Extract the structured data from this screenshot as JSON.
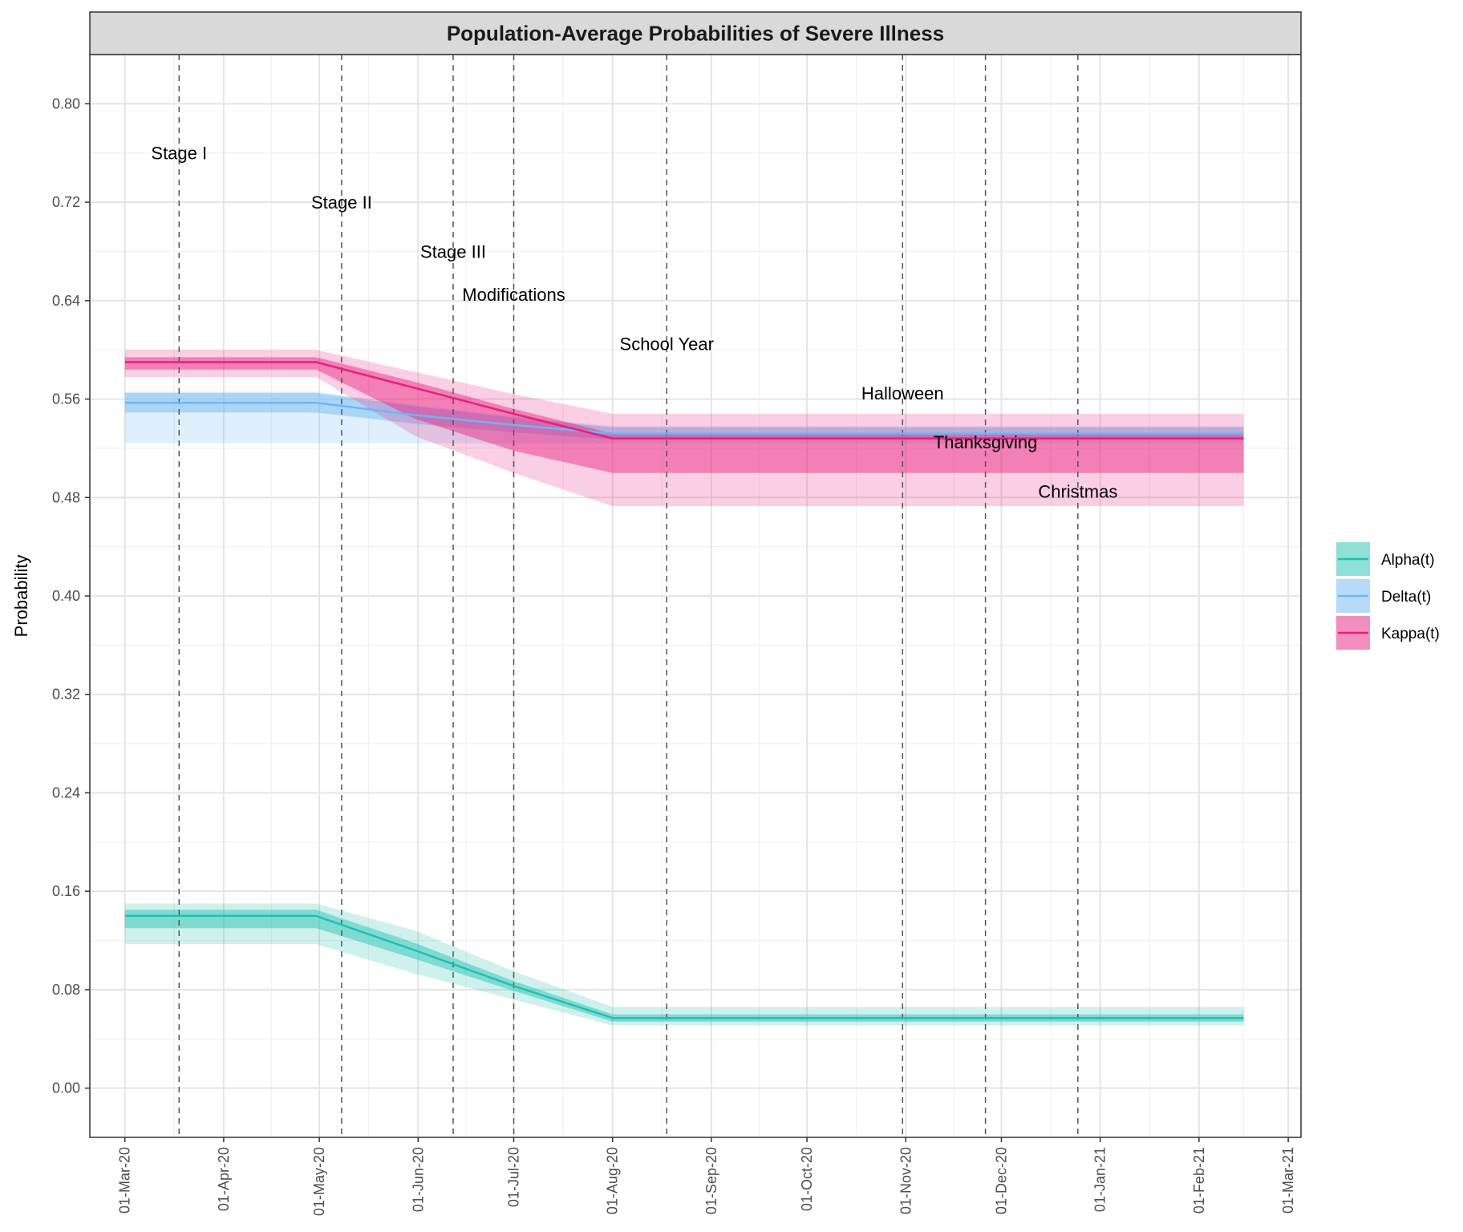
{
  "chart_data": {
    "type": "line",
    "title": "Population-Average Probabilities of Severe Illness",
    "xlabel": "",
    "ylabel": "Probability",
    "x_range": [
      "2020-02-19",
      "2021-03-05"
    ],
    "ylim": [
      -0.04,
      0.84
    ],
    "y_ticks": [
      0.0,
      0.08,
      0.16,
      0.24,
      0.32,
      0.4,
      0.48,
      0.56,
      0.64,
      0.72,
      0.8
    ],
    "y_tick_labels": [
      "0.00",
      "0.08",
      "0.16",
      "0.24",
      "0.32",
      "0.40",
      "0.48",
      "0.56",
      "0.64",
      "0.72",
      "0.80"
    ],
    "x_ticks": [
      "2020-03-01",
      "2020-04-01",
      "2020-05-01",
      "2020-06-01",
      "2020-07-01",
      "2020-08-01",
      "2020-09-01",
      "2020-10-01",
      "2020-11-01",
      "2020-12-01",
      "2021-01-01",
      "2021-02-01",
      "2021-03-01"
    ],
    "x_tick_labels": [
      "01-Mar-20",
      "01-Apr-20",
      "01-May-20",
      "01-Jun-20",
      "01-Jul-20",
      "01-Aug-20",
      "01-Sep-20",
      "01-Oct-20",
      "01-Nov-20",
      "01-Dec-20",
      "01-Jan-21",
      "01-Feb-21",
      "01-Mar-21"
    ],
    "grid": true,
    "legend_position": "right",
    "series": [
      {
        "name": "Alpha(t)",
        "color": "#1fc1b0",
        "x": [
          "2020-03-01",
          "2020-04-30",
          "2020-05-31",
          "2020-07-01",
          "2020-08-01",
          "2021-02-15"
        ],
        "y": [
          0.14,
          0.14,
          0.112,
          0.083,
          0.057,
          0.057
        ],
        "inner_lower": [
          0.13,
          0.13,
          0.105,
          0.079,
          0.054,
          0.054
        ],
        "inner_upper": [
          0.145,
          0.145,
          0.118,
          0.087,
          0.06,
          0.06
        ],
        "outer_lower": [
          0.117,
          0.117,
          0.093,
          0.072,
          0.051,
          0.051
        ],
        "outer_upper": [
          0.15,
          0.15,
          0.128,
          0.095,
          0.066,
          0.066
        ]
      },
      {
        "name": "Delta(t)",
        "color": "#6db6f2",
        "x": [
          "2020-03-01",
          "2020-04-30",
          "2020-05-31",
          "2020-07-01",
          "2020-08-01",
          "2021-02-15"
        ],
        "y": [
          0.557,
          0.557,
          0.547,
          0.539,
          0.532,
          0.532
        ],
        "inner_lower": [
          0.549,
          0.549,
          0.54,
          0.533,
          0.527,
          0.527
        ],
        "inner_upper": [
          0.565,
          0.565,
          0.554,
          0.545,
          0.537,
          0.537
        ],
        "outer_lower": [
          0.524,
          0.524,
          0.524,
          0.524,
          0.524,
          0.524
        ],
        "outer_upper": [
          0.566,
          0.566,
          0.555,
          0.546,
          0.538,
          0.538
        ]
      },
      {
        "name": "Kappa(t)",
        "color": "#e8207e",
        "x": [
          "2020-03-01",
          "2020-04-30",
          "2020-05-31",
          "2020-07-01",
          "2020-08-01",
          "2021-02-15"
        ],
        "y": [
          0.59,
          0.59,
          0.569,
          0.548,
          0.528,
          0.528
        ],
        "inner_lower": [
          0.584,
          0.584,
          0.544,
          0.518,
          0.5,
          0.5
        ],
        "inner_upper": [
          0.594,
          0.594,
          0.574,
          0.552,
          0.532,
          0.532
        ],
        "outer_lower": [
          0.578,
          0.578,
          0.53,
          0.5,
          0.473,
          0.473
        ],
        "outer_upper": [
          0.6,
          0.6,
          0.582,
          0.564,
          0.548,
          0.548
        ]
      }
    ],
    "events": [
      {
        "date": "2020-03-18",
        "label": "Stage I"
      },
      {
        "date": "2020-05-08",
        "label": "Stage II"
      },
      {
        "date": "2020-06-12",
        "label": "Stage III"
      },
      {
        "date": "2020-07-01",
        "label": "Modifications"
      },
      {
        "date": "2020-08-18",
        "label": "School Year"
      },
      {
        "date": "2020-10-31",
        "label": "Halloween"
      },
      {
        "date": "2020-11-26",
        "label": "Thanksgiving"
      },
      {
        "date": "2020-12-25",
        "label": "Christmas"
      }
    ]
  }
}
